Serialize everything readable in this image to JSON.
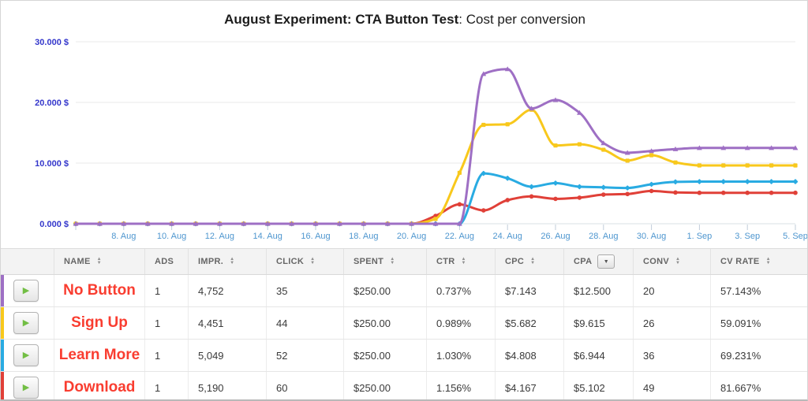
{
  "title": {
    "bold": "August Experiment: CTA Button Test",
    "rest": ": Cost per conversion"
  },
  "colors": {
    "y_label": "#3336cb",
    "x_label": "#4e96cf",
    "grid": "#e8e8e8",
    "axis": "#d9e0e6",
    "tick": "#c2ceda",
    "name_red": "#f93d30",
    "play_green": "#72be44",
    "purple": "#9e6fc4",
    "yellow": "#f8c81c",
    "blue": "#29abe2",
    "red": "#e04038"
  },
  "chart_data": {
    "type": "line",
    "x_start_label": "6. Aug",
    "x_count": 31,
    "ylim": [
      0,
      30000
    ],
    "grid": true,
    "legend_position": "none",
    "y_ticks": [
      {
        "value": 0,
        "label": "0.000 $"
      },
      {
        "value": 10000,
        "label": "10.000 $"
      },
      {
        "value": 20000,
        "label": "20.000 $"
      },
      {
        "value": 30000,
        "label": "30.000 $"
      }
    ],
    "x_ticks": [
      {
        "index": 2,
        "label": "8. Aug"
      },
      {
        "index": 4,
        "label": "10. Aug"
      },
      {
        "index": 6,
        "label": "12. Aug"
      },
      {
        "index": 8,
        "label": "14. Aug"
      },
      {
        "index": 10,
        "label": "16. Aug"
      },
      {
        "index": 12,
        "label": "18. Aug"
      },
      {
        "index": 14,
        "label": "20. Aug"
      },
      {
        "index": 16,
        "label": "22. Aug"
      },
      {
        "index": 18,
        "label": "24. Aug"
      },
      {
        "index": 20,
        "label": "26. Aug"
      },
      {
        "index": 22,
        "label": "28. Aug"
      },
      {
        "index": 24,
        "label": "30. Aug"
      },
      {
        "index": 26,
        "label": "1. Sep"
      },
      {
        "index": 28,
        "label": "3. Sep"
      },
      {
        "index": 30,
        "label": "5. Sep"
      }
    ],
    "series": [
      {
        "name": "No Button",
        "color": "#9e6fc4",
        "marker": "triangle",
        "values": [
          0,
          0,
          0,
          0,
          0,
          0,
          0,
          0,
          0,
          0,
          0,
          0,
          0,
          0,
          0,
          0,
          0,
          24700,
          25500,
          19000,
          20400,
          18300,
          13300,
          11700,
          12000,
          12300,
          12500,
          12500,
          12500,
          12500,
          12500
        ]
      },
      {
        "name": "Sign Up",
        "color": "#f8c81c",
        "marker": "square",
        "values": [
          0,
          0,
          0,
          0,
          0,
          0,
          0,
          0,
          0,
          0,
          0,
          0,
          0,
          0,
          0,
          800,
          8400,
          16300,
          16400,
          18800,
          12900,
          13100,
          12200,
          10400,
          11300,
          10100,
          9615,
          9615,
          9615,
          9615,
          9615
        ]
      },
      {
        "name": "Learn More",
        "color": "#29abe2",
        "marker": "diamond",
        "values": [
          0,
          0,
          0,
          0,
          0,
          0,
          0,
          0,
          0,
          0,
          0,
          0,
          0,
          0,
          0,
          0,
          0,
          8300,
          7500,
          6100,
          6700,
          6100,
          6000,
          5900,
          6500,
          6900,
          6944,
          6944,
          6944,
          6944,
          6944
        ]
      },
      {
        "name": "Download",
        "color": "#e04038",
        "marker": "circle",
        "values": [
          0,
          0,
          0,
          0,
          0,
          0,
          0,
          0,
          0,
          0,
          0,
          0,
          0,
          0,
          0,
          1300,
          3200,
          2200,
          3900,
          4500,
          4100,
          4300,
          4800,
          4900,
          5400,
          5150,
          5102,
          5102,
          5102,
          5102,
          5102
        ]
      }
    ]
  },
  "table": {
    "play_icon": "▶",
    "sort_up": "▲",
    "sort_down": "▼",
    "columns": [
      {
        "key": "play",
        "label": "",
        "sort": "none"
      },
      {
        "key": "name",
        "label": "NAME",
        "sort": "both"
      },
      {
        "key": "ads",
        "label": "ADS",
        "sort": "none"
      },
      {
        "key": "impr",
        "label": "IMPR.",
        "sort": "both"
      },
      {
        "key": "click",
        "label": "CLICK",
        "sort": "both"
      },
      {
        "key": "spent",
        "label": "SPENT",
        "sort": "both"
      },
      {
        "key": "ctr",
        "label": "CTR",
        "sort": "both"
      },
      {
        "key": "cpc",
        "label": "CPC",
        "sort": "both"
      },
      {
        "key": "cpa",
        "label": "CPA",
        "sort": "active"
      },
      {
        "key": "conv",
        "label": "CONV",
        "sort": "both"
      },
      {
        "key": "cv_rate",
        "label": "CV RATE",
        "sort": "both"
      }
    ],
    "rows": [
      {
        "name": "No Button",
        "color": "#9e6fc4",
        "ads": "1",
        "impr": "4,752",
        "click": "35",
        "spent": "$250.00",
        "ctr": "0.737%",
        "cpc": "$7.143",
        "cpa": "$12.500",
        "conv": "20",
        "cv_rate": "57.143%"
      },
      {
        "name": "Sign Up",
        "color": "#f8c81c",
        "ads": "1",
        "impr": "4,451",
        "click": "44",
        "spent": "$250.00",
        "ctr": "0.989%",
        "cpc": "$5.682",
        "cpa": "$9.615",
        "conv": "26",
        "cv_rate": "59.091%"
      },
      {
        "name": "Learn More",
        "color": "#29abe2",
        "ads": "1",
        "impr": "5,049",
        "click": "52",
        "spent": "$250.00",
        "ctr": "1.030%",
        "cpc": "$4.808",
        "cpa": "$6.944",
        "conv": "36",
        "cv_rate": "69.231%"
      },
      {
        "name": "Download",
        "color": "#e04038",
        "ads": "1",
        "impr": "5,190",
        "click": "60",
        "spent": "$250.00",
        "ctr": "1.156%",
        "cpc": "$4.167",
        "cpa": "$5.102",
        "conv": "49",
        "cv_rate": "81.667%"
      }
    ]
  }
}
